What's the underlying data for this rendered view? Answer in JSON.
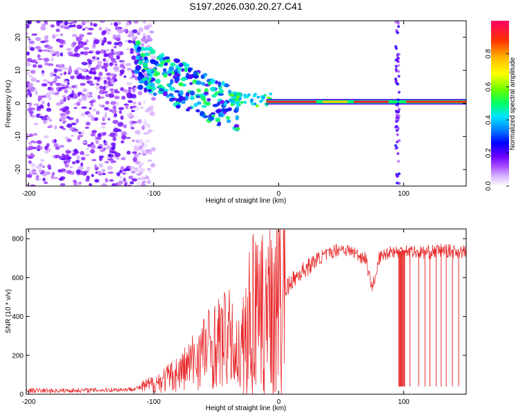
{
  "title": "S197.2026.030.20.27.C41",
  "colors": {
    "snr_line": "#e8282a",
    "axis": "#000000",
    "colormap": [
      "#ffffff",
      "#d9b3ff",
      "#a64dff",
      "#6a00ff",
      "#0000ff",
      "#0080ff",
      "#00e5ff",
      "#00ff66",
      "#66ff00",
      "#ffff00",
      "#ffb300",
      "#ff3300",
      "#ff0066"
    ]
  },
  "chart_data": [
    {
      "type": "heatmap",
      "title": "",
      "xlabel": "Height of straight line (km)",
      "ylabel": "Frequency (Hz)",
      "xlim": [
        -202,
        150
      ],
      "ylim": [
        -25,
        25
      ],
      "xticks": [
        -200,
        -100,
        0,
        100
      ],
      "yticks": [
        -20,
        -10,
        0,
        10,
        20
      ],
      "colorbar": {
        "label": "Normalized spectral amplitude",
        "range": [
          0,
          1
        ],
        "ticks": [
          0.0,
          0.2,
          0.4,
          0.6,
          0.8
        ]
      },
      "features": [
        {
          "name": "noise-region",
          "x_range": [
            -202,
            -100
          ],
          "freq_range": [
            -25,
            25
          ],
          "amplitude": 0.15
        },
        {
          "name": "descending-band",
          "x_range": [
            -115,
            -30
          ],
          "freq_start": 12,
          "freq_end": -3,
          "amplitude": 0.3
        },
        {
          "name": "carrier-line",
          "x_range": [
            -10,
            150
          ],
          "freq": 0.5,
          "amplitude": 0.95
        },
        {
          "name": "spike-band",
          "x": 95,
          "freq_range": [
            -25,
            25
          ],
          "amplitude": 0.2
        }
      ]
    },
    {
      "type": "line",
      "title": "",
      "xlabel": "Height of straight line (km)",
      "ylabel": "SNR (10 * v/v)",
      "xlim": [
        -202,
        150
      ],
      "ylim": [
        0,
        850
      ],
      "xticks": [
        -200,
        -100,
        0,
        100
      ],
      "yticks": [
        0,
        200,
        400,
        600,
        800
      ],
      "series": [
        {
          "name": "SNR",
          "x": [
            -202,
            -180,
            -160,
            -140,
            -120,
            -110,
            -100,
            -90,
            -80,
            -70,
            -60,
            -50,
            -45,
            -40,
            -35,
            -30,
            -25,
            -20,
            -15,
            -10,
            -5,
            0,
            5,
            10,
            15,
            20,
            25,
            30,
            35,
            40,
            45,
            50,
            55,
            60,
            65,
            70,
            72,
            75,
            78,
            80,
            85,
            90,
            95,
            100,
            105,
            110,
            120,
            130,
            140,
            150
          ],
          "values": [
            20,
            18,
            20,
            22,
            25,
            35,
            55,
            80,
            110,
            160,
            230,
            260,
            280,
            290,
            220,
            210,
            320,
            420,
            350,
            450,
            500,
            480,
            530,
            580,
            610,
            640,
            660,
            690,
            710,
            720,
            740,
            750,
            740,
            730,
            710,
            700,
            610,
            560,
            600,
            700,
            720,
            740,
            730,
            740,
            740,
            730,
            730,
            740,
            735,
            730
          ],
          "dropouts": [
            {
              "x_range": [
                96,
                101
              ],
              "value": 40
            },
            {
              "x": 105,
              "value": 40
            },
            {
              "x": 112,
              "value": 40
            },
            {
              "x": 117,
              "value": 40
            },
            {
              "x": 121,
              "value": 40
            },
            {
              "x": 126,
              "value": 40
            },
            {
              "x": 130,
              "value": 40
            },
            {
              "x": 134,
              "value": 40
            },
            {
              "x": 139,
              "value": 40
            },
            {
              "x": 144,
              "value": 40
            }
          ]
        }
      ]
    }
  ]
}
